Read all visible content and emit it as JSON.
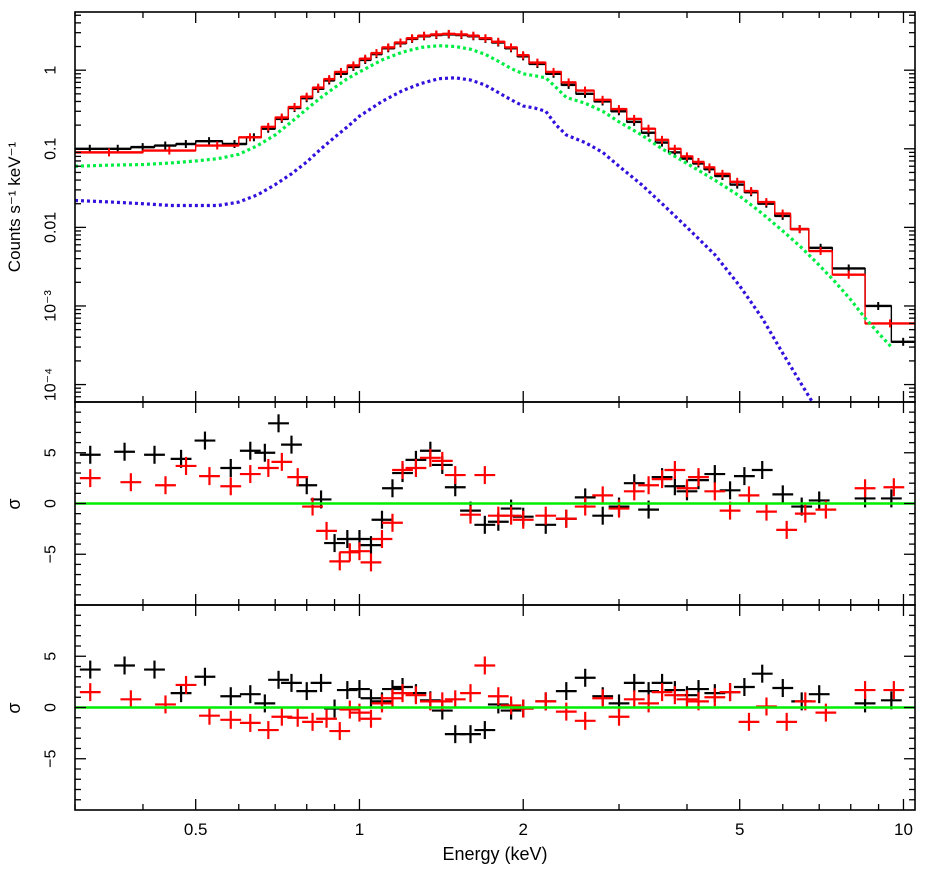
{
  "colors": {
    "black": "#000000",
    "red": "#ff0000",
    "green_model": "#00ee44",
    "blue_model": "#3311dd",
    "zero_line": "#00ee00"
  },
  "xlabel": "Energy (keV)",
  "x_ticks": [
    "0.5",
    "1",
    "2",
    "5",
    "10"
  ],
  "chart_data": [
    {
      "type": "line",
      "panel": "spectrum",
      "xscale": "log",
      "yscale": "log",
      "xlim": [
        0.3,
        10.5
      ],
      "ylim": [
        6e-05,
        5.5
      ],
      "ylabel": "Counts s⁻¹ keV⁻¹",
      "y_ticks": [
        {
          "value": 1,
          "label": "1"
        },
        {
          "value": 0.1,
          "label": "0.1"
        },
        {
          "value": 0.01,
          "label": "0.01"
        },
        {
          "value": 0.001,
          "label": "10⁻³"
        },
        {
          "value": 0.0001,
          "label": "10⁻⁴"
        }
      ],
      "series": [
        {
          "name": "data black",
          "color": "#000000",
          "x": [
            0.3,
            0.34,
            0.38,
            0.42,
            0.46,
            0.5,
            0.56,
            0.62,
            0.66,
            0.7,
            0.74,
            0.78,
            0.82,
            0.86,
            0.9,
            0.95,
            1.0,
            1.05,
            1.1,
            1.16,
            1.22,
            1.28,
            1.35,
            1.42,
            1.5,
            1.58,
            1.66,
            1.75,
            1.85,
            1.95,
            2.05,
            2.2,
            2.35,
            2.5,
            2.7,
            2.9,
            3.1,
            3.3,
            3.5,
            3.7,
            3.9,
            4.1,
            4.3,
            4.5,
            4.8,
            5.1,
            5.4,
            5.8,
            6.2,
            6.7,
            7.4,
            8.5,
            9.5,
            10.5
          ],
          "y": [
            0.1,
            0.1,
            0.105,
            0.11,
            0.115,
            0.125,
            0.115,
            0.14,
            0.18,
            0.24,
            0.33,
            0.44,
            0.58,
            0.74,
            0.9,
            1.1,
            1.35,
            1.6,
            1.9,
            2.2,
            2.5,
            2.7,
            2.8,
            2.85,
            2.8,
            2.7,
            2.5,
            2.25,
            1.9,
            1.5,
            1.2,
            0.9,
            0.65,
            0.5,
            0.4,
            0.3,
            0.22,
            0.16,
            0.12,
            0.09,
            0.075,
            0.065,
            0.055,
            0.045,
            0.035,
            0.028,
            0.02,
            0.014,
            0.0095,
            0.0055,
            0.003,
            0.001,
            0.00035,
            0.00032
          ]
        },
        {
          "name": "data red",
          "color": "#ff0000",
          "x": [
            0.3,
            0.4,
            0.5,
            0.6,
            0.66,
            0.7,
            0.74,
            0.78,
            0.82,
            0.86,
            0.9,
            0.95,
            1.0,
            1.05,
            1.1,
            1.16,
            1.22,
            1.28,
            1.35,
            1.42,
            1.5,
            1.58,
            1.66,
            1.75,
            1.85,
            1.95,
            2.05,
            2.2,
            2.35,
            2.5,
            2.7,
            2.9,
            3.1,
            3.3,
            3.5,
            3.7,
            3.9,
            4.1,
            4.3,
            4.5,
            4.8,
            5.1,
            5.4,
            5.8,
            6.2,
            6.7,
            7.4,
            8.5,
            10.5
          ],
          "y": [
            0.09,
            0.095,
            0.11,
            0.14,
            0.19,
            0.25,
            0.34,
            0.46,
            0.6,
            0.77,
            0.95,
            1.15,
            1.4,
            1.65,
            1.95,
            2.25,
            2.55,
            2.75,
            2.85,
            2.9,
            2.85,
            2.75,
            2.55,
            2.3,
            1.95,
            1.55,
            1.25,
            0.95,
            0.7,
            0.55,
            0.42,
            0.32,
            0.24,
            0.18,
            0.13,
            0.1,
            0.08,
            0.068,
            0.058,
            0.048,
            0.038,
            0.029,
            0.021,
            0.015,
            0.0095,
            0.005,
            0.0025,
            0.0006,
            0.00055
          ]
        },
        {
          "name": "model green",
          "color": "#00ee44",
          "x": [
            0.3,
            0.35,
            0.4,
            0.45,
            0.5,
            0.55,
            0.6,
            0.65,
            0.7,
            0.75,
            0.8,
            0.85,
            0.9,
            0.95,
            1.0,
            1.1,
            1.2,
            1.3,
            1.4,
            1.5,
            1.6,
            1.7,
            1.8,
            1.9,
            2.0,
            2.1,
            2.2,
            2.3,
            2.4,
            2.6,
            2.8,
            3.0,
            3.3,
            3.6,
            4.0,
            4.5,
            5.0,
            5.5,
            6.0,
            6.5,
            7.0,
            7.5,
            8.0,
            8.5,
            9.0,
            9.5
          ],
          "y": [
            0.06,
            0.062,
            0.063,
            0.066,
            0.07,
            0.075,
            0.085,
            0.11,
            0.15,
            0.22,
            0.32,
            0.45,
            0.6,
            0.78,
            0.95,
            1.35,
            1.7,
            1.95,
            2.05,
            2.0,
            1.85,
            1.6,
            1.3,
            1.05,
            0.9,
            0.85,
            0.8,
            0.6,
            0.45,
            0.38,
            0.3,
            0.22,
            0.15,
            0.1,
            0.065,
            0.04,
            0.025,
            0.015,
            0.009,
            0.0055,
            0.0033,
            0.002,
            0.0012,
            0.0007,
            0.00045,
            0.0003
          ]
        },
        {
          "name": "model blue",
          "color": "#3311dd",
          "x": [
            0.3,
            0.35,
            0.4,
            0.45,
            0.5,
            0.55,
            0.6,
            0.65,
            0.7,
            0.75,
            0.8,
            0.85,
            0.9,
            0.95,
            1.0,
            1.1,
            1.2,
            1.3,
            1.4,
            1.5,
            1.6,
            1.7,
            1.8,
            1.9,
            2.0,
            2.1,
            2.2,
            2.3,
            2.4,
            2.6,
            2.8,
            3.0,
            3.3,
            3.6,
            4.0,
            4.5,
            5.0,
            5.5,
            6.0,
            6.5,
            6.8
          ],
          "y": [
            0.022,
            0.021,
            0.02,
            0.019,
            0.019,
            0.019,
            0.021,
            0.026,
            0.035,
            0.048,
            0.068,
            0.1,
            0.14,
            0.19,
            0.26,
            0.4,
            0.55,
            0.68,
            0.78,
            0.8,
            0.75,
            0.65,
            0.52,
            0.42,
            0.35,
            0.33,
            0.3,
            0.2,
            0.15,
            0.12,
            0.09,
            0.06,
            0.035,
            0.02,
            0.01,
            0.0045,
            0.0018,
            0.0007,
            0.00025,
            0.0001,
            6e-05
          ]
        }
      ]
    },
    {
      "type": "scatter",
      "panel": "residuals-1",
      "xscale": "log",
      "xlim": [
        0.3,
        10.5
      ],
      "ylim": [
        -10,
        10
      ],
      "ylabel": "σ",
      "y_ticks": [
        {
          "value": 5,
          "label": "5"
        },
        {
          "value": 0,
          "label": "0"
        },
        {
          "value": -5,
          "label": "−5"
        }
      ],
      "zero_line": 0,
      "series": [
        {
          "name": "black",
          "color": "#000000",
          "x": [
            0.32,
            0.37,
            0.42,
            0.47,
            0.52,
            0.58,
            0.63,
            0.67,
            0.71,
            0.75,
            0.8,
            0.85,
            0.9,
            0.95,
            1.0,
            1.05,
            1.1,
            1.15,
            1.2,
            1.27,
            1.35,
            1.42,
            1.5,
            1.6,
            1.7,
            1.8,
            1.9,
            2.0,
            2.2,
            2.4,
            2.6,
            2.8,
            3.0,
            3.2,
            3.4,
            3.6,
            3.8,
            4.0,
            4.2,
            4.5,
            4.8,
            5.1,
            5.5,
            6.0,
            6.5,
            7.0,
            8.5,
            9.5
          ],
          "y": [
            4.8,
            5.1,
            4.8,
            4.4,
            6.2,
            3.5,
            5.2,
            5.0,
            7.9,
            5.8,
            1.8,
            0.4,
            -3.9,
            -3.5,
            -3.5,
            -4.1,
            -1.6,
            1.5,
            3.0,
            4.3,
            5.2,
            3.8,
            1.6,
            -0.7,
            -2.1,
            -1.8,
            -0.5,
            -1.3,
            -2.1,
            -1.5,
            0.6,
            -1.2,
            -0.3,
            2.0,
            -0.6,
            2.6,
            1.7,
            1.2,
            2.3,
            2.9,
            1.3,
            2.7,
            3.3,
            0.9,
            -0.3,
            0.3,
            0.5,
            0.5
          ]
        },
        {
          "name": "red",
          "color": "#ff0000",
          "x": [
            0.32,
            0.38,
            0.44,
            0.48,
            0.53,
            0.58,
            0.63,
            0.68,
            0.72,
            0.77,
            0.82,
            0.87,
            0.92,
            0.96,
            1.0,
            1.05,
            1.1,
            1.15,
            1.2,
            1.27,
            1.35,
            1.42,
            1.5,
            1.6,
            1.7,
            1.8,
            1.9,
            2.0,
            2.2,
            2.4,
            2.6,
            2.8,
            3.0,
            3.2,
            3.4,
            3.6,
            3.8,
            4.0,
            4.2,
            4.5,
            4.8,
            5.2,
            5.6,
            6.1,
            6.6,
            7.2,
            8.5,
            9.6
          ],
          "y": [
            2.5,
            2.1,
            1.8,
            3.7,
            2.7,
            1.7,
            2.9,
            3.5,
            4.1,
            2.6,
            -0.3,
            -2.7,
            -5.7,
            -4.8,
            -4.7,
            -5.8,
            -3.5,
            -1.9,
            3.3,
            3.5,
            4.5,
            4.2,
            2.8,
            -1.1,
            2.8,
            -1.2,
            -1.2,
            -1.6,
            -1.2,
            -1.5,
            -0.3,
            0.8,
            -0.5,
            1.2,
            1.8,
            2.4,
            3.3,
            1.5,
            2.6,
            1.2,
            -0.7,
            0.8,
            -0.8,
            -2.6,
            -1.0,
            -0.6,
            1.5,
            1.6
          ]
        }
      ]
    },
    {
      "type": "scatter",
      "panel": "residuals-2",
      "xscale": "log",
      "xlim": [
        0.3,
        10.5
      ],
      "ylim": [
        -10,
        10
      ],
      "ylabel": "σ",
      "y_ticks": [
        {
          "value": 5,
          "label": "5"
        },
        {
          "value": 0,
          "label": "0"
        },
        {
          "value": -5,
          "label": "−5"
        }
      ],
      "zero_line": 0,
      "series": [
        {
          "name": "black",
          "color": "#000000",
          "x": [
            0.32,
            0.37,
            0.42,
            0.47,
            0.52,
            0.58,
            0.63,
            0.67,
            0.71,
            0.75,
            0.8,
            0.85,
            0.9,
            0.95,
            1.0,
            1.05,
            1.1,
            1.15,
            1.2,
            1.27,
            1.35,
            1.42,
            1.5,
            1.6,
            1.7,
            1.8,
            1.9,
            2.0,
            2.2,
            2.4,
            2.6,
            2.8,
            3.0,
            3.2,
            3.4,
            3.6,
            3.8,
            4.0,
            4.2,
            4.5,
            4.8,
            5.1,
            5.5,
            6.0,
            6.5,
            7.0,
            8.5,
            9.5
          ],
          "y": [
            3.7,
            4.1,
            3.7,
            1.4,
            3.0,
            1.1,
            1.3,
            0.4,
            2.7,
            2.4,
            1.6,
            2.4,
            -0.1,
            1.7,
            1.8,
            0.9,
            0.6,
            1.8,
            2.0,
            1.4,
            0.7,
            -0.3,
            -2.6,
            -2.6,
            -2.2,
            0.3,
            -0.3,
            -0.1,
            0.6,
            1.6,
            2.9,
            1.1,
            0.4,
            2.4,
            1.6,
            2.4,
            1.7,
            1.2,
            1.8,
            1.4,
            1.5,
            2.0,
            3.3,
            1.9,
            0.6,
            1.3,
            0.4,
            0.7
          ]
        },
        {
          "name": "red",
          "color": "#ff0000",
          "x": [
            0.32,
            0.38,
            0.44,
            0.48,
            0.53,
            0.58,
            0.63,
            0.68,
            0.72,
            0.77,
            0.82,
            0.87,
            0.92,
            0.96,
            1.0,
            1.05,
            1.1,
            1.15,
            1.2,
            1.27,
            1.35,
            1.42,
            1.5,
            1.6,
            1.7,
            1.8,
            1.9,
            2.0,
            2.2,
            2.4,
            2.6,
            2.8,
            3.0,
            3.2,
            3.4,
            3.6,
            3.8,
            4.0,
            4.2,
            4.5,
            4.8,
            5.2,
            5.6,
            6.1,
            6.6,
            7.2,
            8.5,
            9.6
          ],
          "y": [
            1.5,
            0.8,
            0.3,
            2.2,
            -0.8,
            -1.2,
            -1.5,
            -2.2,
            -0.9,
            -1.0,
            -1.4,
            -1.1,
            -2.3,
            -0.2,
            -0.5,
            -1.1,
            0.4,
            0.9,
            1.4,
            1.2,
            0.6,
            0.6,
            0.8,
            1.4,
            4.1,
            1.1,
            0.2,
            -0.1,
            0.6,
            -0.4,
            -1.3,
            0.9,
            -0.9,
            0.8,
            0.4,
            1.5,
            1.2,
            0.8,
            0.6,
            1.0,
            1.5,
            -1.4,
            0.1,
            -1.4,
            0.6,
            -0.5,
            1.7,
            1.7
          ]
        }
      ]
    }
  ]
}
